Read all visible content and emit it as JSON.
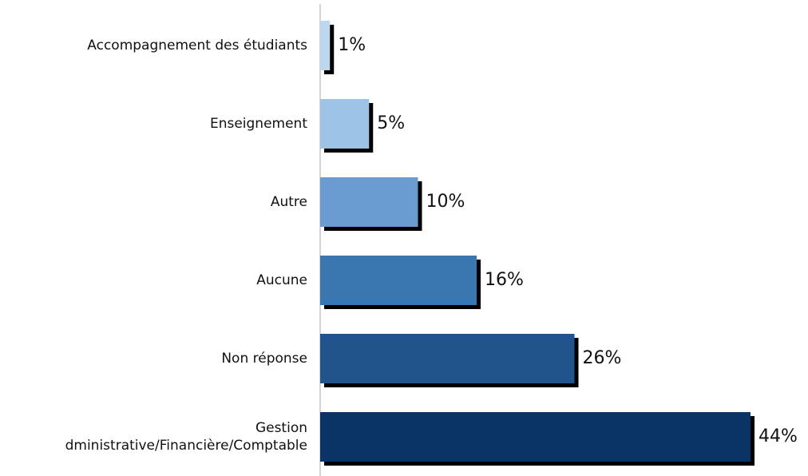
{
  "chart_data": {
    "type": "bar",
    "orientation": "horizontal",
    "categories": [
      "Accompagnement des étudiants",
      "Enseignement",
      "Autre",
      "Aucune",
      "Non réponse",
      "Gestion\ndministrative/Financière/Comptable"
    ],
    "values": [
      1,
      5,
      10,
      16,
      26,
      44
    ],
    "value_labels": [
      "1%",
      "5%",
      "10%",
      "16%",
      "26%",
      "44%"
    ],
    "colors": [
      "#bdd7ee",
      "#9dc3e6",
      "#6a9bd1",
      "#3a76b0",
      "#20548a",
      "#0a3366"
    ],
    "xlim": [
      0,
      48
    ]
  }
}
